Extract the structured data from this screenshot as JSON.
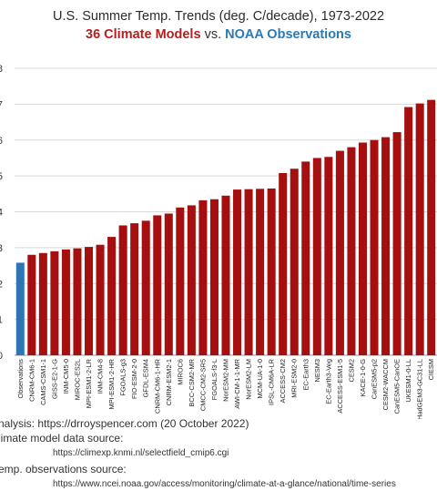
{
  "header": {
    "title": "U.S. Summer Temp. Trends (deg. C/decade), 1973-2022",
    "subtitle_models": "36 Climate Models",
    "subtitle_vs": "vs.",
    "subtitle_obs": "NOAA Observations"
  },
  "notes": {
    "analysis": "nalysis: https://drroyspencer.com (20 October 2022)",
    "model_source_label": "limate model data source:",
    "model_source_url": "https://climexp.knmi.nl/selectfield_cmip6.cgi",
    "obs_source_label": "emp. observations source:",
    "obs_source_url": "https://www.ncei.noaa.gov/access/monitoring/climate-at-a-glance/national/time-series"
  },
  "chart_data": {
    "type": "bar",
    "title": "U.S. Summer Temp. Trends (deg. C/decade), 1973-2022",
    "ylim": [
      0,
      0.8
    ],
    "ytick_labels": [
      "0",
      "1",
      "2",
      "3",
      "4",
      "5",
      "6",
      "7",
      "8"
    ],
    "grid": true,
    "colors": {
      "observations": "#2e75b6",
      "models": "#a50f0f",
      "grid": "#d9d9d9"
    },
    "categories": [
      "Observations",
      "CNRM-CM6-1",
      "CAMS-CSM1-1",
      "GISS-E2-1-G",
      "INM-CM5-0",
      "MIROC-ES2L",
      "MPI-ESM1-2-LR",
      "INM-CM4-8",
      "MPI-ESM1-2-HR",
      "FGOALS-g3",
      "FIO-ESM-2-0",
      "GFDL-ESM4",
      "CNRM-CM6-1-HR",
      "CNRM-ESM2-1",
      "MIROC6",
      "BCC-CSM2-MR",
      "CMCC-CM2-SR5",
      "FGOALS-f3-L",
      "NorESM2-MM",
      "AWI-CM-1-1-MR",
      "NorESM2-LM",
      "MCM-UA-1-0",
      "IPSL-CM6A-LR",
      "ACCESS-CM2",
      "MRI-ESM2-0",
      "EC-Earth3",
      "NESM3",
      "EC-Earth3-Veg",
      "ACCESS-ESM1-5",
      "CESM2",
      "KACE-1-0-G",
      "CanESM5-p2",
      "CESM2-WACCM",
      "CanESM5-CanOE",
      "UKESM1-0-LL",
      "HadGEM3-GC31-LL",
      "CIESM"
    ],
    "values": [
      0.258,
      0.28,
      0.285,
      0.29,
      0.295,
      0.298,
      0.302,
      0.308,
      0.33,
      0.362,
      0.368,
      0.375,
      0.39,
      0.395,
      0.412,
      0.418,
      0.432,
      0.435,
      0.445,
      0.462,
      0.463,
      0.464,
      0.465,
      0.508,
      0.52,
      0.54,
      0.55,
      0.553,
      0.57,
      0.58,
      0.593,
      0.6,
      0.608,
      0.622,
      0.692,
      0.702,
      0.712
    ]
  }
}
